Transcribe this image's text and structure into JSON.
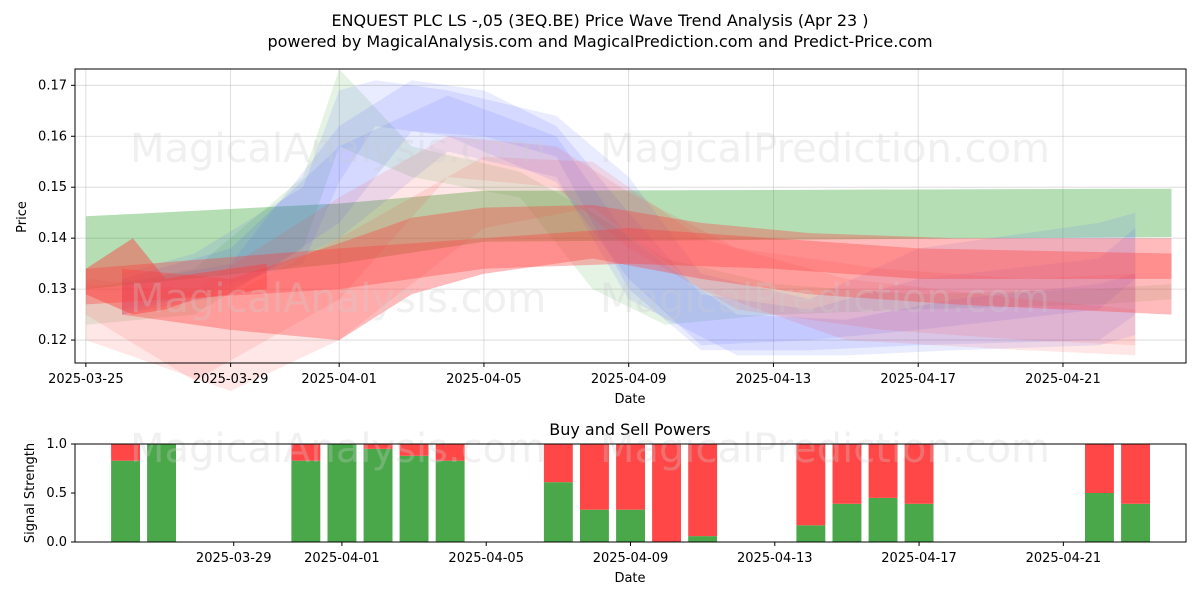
{
  "figure": {
    "title_line1": "ENQUEST PLC LS -,05 (3EQ.BE) Price Wave Trend Analysis (Apr 23 )",
    "title_line2": "powered by MagicalAnalysis.com and MagicalPrediction.com and Predict-Price.com",
    "watermarks": [
      "MagicalAnalysis.com",
      "MagicalPrediction.com"
    ]
  },
  "chart_data": [
    {
      "type": "area",
      "xlabel": "Date",
      "ylabel": "Price",
      "xlim": [
        "2025-03-24.7",
        "2025-04-24.4"
      ],
      "ylim": [
        0.1155,
        0.1732
      ],
      "x_ticks": [
        "2025-03-25",
        "2025-03-29",
        "2025-04-01",
        "2025-04-05",
        "2025-04-09",
        "2025-04-13",
        "2025-04-17",
        "2025-04-21"
      ],
      "y_ticks": [
        "0.12",
        "0.13",
        "0.14",
        "0.15",
        "0.16",
        "0.17"
      ],
      "grid": true,
      "colors": {
        "green": "#2ca02c",
        "blue": "#4a5cff",
        "red": "#ff3b3b"
      },
      "bands": [
        {
          "color": "green",
          "opacity": 0.35,
          "x": [
            "2025-03-25",
            "2025-04-01",
            "2025-04-05",
            "2025-04-24"
          ],
          "upper": [
            0.1443,
            0.1468,
            0.1493,
            0.1497
          ],
          "lower": [
            0.13,
            0.135,
            0.1393,
            0.1402
          ]
        },
        {
          "color": "green",
          "opacity": 0.12,
          "x": [
            "2025-03-25",
            "2025-03-28",
            "2025-03-31",
            "2025-04-01",
            "2025-04-03",
            "2025-04-06",
            "2025-04-08",
            "2025-04-10",
            "2025-04-13",
            "2025-04-17",
            "2025-04-22",
            "2025-04-24"
          ],
          "upper": [
            0.13,
            0.134,
            0.152,
            0.1732,
            0.158,
            0.153,
            0.145,
            0.136,
            0.131,
            0.129,
            0.13,
            0.131
          ],
          "lower": [
            0.123,
            0.125,
            0.138,
            0.158,
            0.152,
            0.148,
            0.13,
            0.123,
            0.125,
            0.126,
            0.127,
            0.128
          ]
        },
        {
          "color": "blue",
          "opacity": 0.12,
          "x": [
            "2025-03-26",
            "2025-03-28",
            "2025-03-31",
            "2025-04-01",
            "2025-04-02",
            "2025-04-04",
            "2025-04-07",
            "2025-04-09",
            "2025-04-11",
            "2025-04-14",
            "2025-04-17",
            "2025-04-22",
            "2025-04-23"
          ],
          "upper": [
            0.133,
            0.137,
            0.15,
            0.169,
            0.171,
            0.169,
            0.164,
            0.152,
            0.133,
            0.128,
            0.138,
            0.143,
            0.145
          ],
          "lower": [
            0.125,
            0.129,
            0.135,
            0.151,
            0.162,
            0.16,
            0.151,
            0.132,
            0.119,
            0.12,
            0.122,
            0.126,
            0.132
          ]
        },
        {
          "color": "blue",
          "opacity": 0.12,
          "x": [
            "2025-03-26",
            "2025-03-29",
            "2025-04-01",
            "2025-04-03",
            "2025-04-05",
            "2025-04-07",
            "2025-04-09",
            "2025-04-11",
            "2025-04-14",
            "2025-04-17",
            "2025-04-22",
            "2025-04-23"
          ],
          "upper": [
            0.131,
            0.135,
            0.162,
            0.171,
            0.169,
            0.162,
            0.145,
            0.129,
            0.126,
            0.132,
            0.136,
            0.142
          ],
          "lower": [
            0.125,
            0.129,
            0.143,
            0.161,
            0.16,
            0.156,
            0.13,
            0.118,
            0.118,
            0.119,
            0.12,
            0.125
          ]
        },
        {
          "color": "blue",
          "opacity": 0.12,
          "x": [
            "2025-03-26",
            "2025-03-29",
            "2025-04-01",
            "2025-04-04",
            "2025-04-07",
            "2025-04-09",
            "2025-04-12",
            "2025-04-15",
            "2025-04-18",
            "2025-04-22",
            "2025-04-23"
          ],
          "upper": [
            0.132,
            0.138,
            0.158,
            0.168,
            0.16,
            0.14,
            0.125,
            0.124,
            0.128,
            0.131,
            0.133
          ],
          "lower": [
            0.126,
            0.13,
            0.14,
            0.157,
            0.152,
            0.128,
            0.117,
            0.117,
            0.118,
            0.119,
            0.121
          ]
        },
        {
          "color": "red",
          "opacity": 0.12,
          "x": [
            "2025-03-25",
            "2025-03-28",
            "2025-04-01",
            "2025-04-04",
            "2025-04-07",
            "2025-04-09",
            "2025-04-12",
            "2025-04-16",
            "2025-04-20",
            "2025-04-23"
          ],
          "upper": [
            0.132,
            0.13,
            0.148,
            0.16,
            0.158,
            0.149,
            0.138,
            0.134,
            0.132,
            0.133
          ],
          "lower": [
            0.125,
            0.112,
            0.128,
            0.152,
            0.15,
            0.138,
            0.126,
            0.122,
            0.12,
            0.119
          ]
        },
        {
          "color": "red",
          "opacity": 0.12,
          "x": [
            "2025-03-25",
            "2025-03-29",
            "2025-04-01",
            "2025-04-05",
            "2025-04-08",
            "2025-04-11",
            "2025-04-15",
            "2025-04-20",
            "2025-04-23"
          ],
          "upper": [
            0.131,
            0.129,
            0.14,
            0.156,
            0.155,
            0.14,
            0.132,
            0.128,
            0.126
          ],
          "lower": [
            0.12,
            0.11,
            0.12,
            0.142,
            0.146,
            0.13,
            0.12,
            0.118,
            0.117
          ]
        },
        {
          "color": "red",
          "opacity": 0.35,
          "x": [
            "2025-03-26",
            "2025-03-29",
            "2025-04-01",
            "2025-04-03",
            "2025-04-05",
            "2025-04-08",
            "2025-04-11",
            "2025-04-14",
            "2025-04-18",
            "2025-04-24"
          ],
          "upper": [
            0.134,
            0.132,
            0.139,
            0.144,
            0.146,
            0.1465,
            0.143,
            0.141,
            0.14,
            0.14
          ],
          "lower": [
            0.125,
            0.122,
            0.12,
            0.129,
            0.133,
            0.136,
            0.132,
            0.129,
            0.127,
            0.125
          ]
        },
        {
          "color": "red",
          "opacity": 0.35,
          "x": [
            "2025-03-25",
            "2025-04-01",
            "2025-04-05",
            "2025-04-09",
            "2025-04-13",
            "2025-04-17",
            "2025-04-24"
          ],
          "upper": [
            0.134,
            0.138,
            0.14,
            0.142,
            0.14,
            0.138,
            0.137
          ],
          "lower": [
            0.127,
            0.13,
            0.134,
            0.135,
            0.134,
            0.132,
            0.132
          ]
        },
        {
          "color": "red",
          "opacity": 0.45,
          "x": [
            "2025-03-25",
            "2025-03-26.3",
            "2025-03-27.2",
            "2025-03-28",
            "2025-03-30"
          ],
          "upper": [
            0.134,
            0.14,
            0.132,
            0.133,
            0.135
          ],
          "lower": [
            0.129,
            0.125,
            0.126,
            0.128,
            0.13
          ]
        }
      ]
    },
    {
      "type": "bar",
      "title": "Buy and Sell Powers",
      "xlabel": "Date",
      "ylabel": "Signal Strength",
      "ylim": [
        0,
        1.0
      ],
      "y_ticks": [
        "0.0",
        "0.5",
        "1.0"
      ],
      "x_ticks": [
        "2025-03-29",
        "2025-04-01",
        "2025-04-05",
        "2025-04-09",
        "2025-04-13",
        "2025-04-17",
        "2025-04-21"
      ],
      "colors": {
        "buy": "#4aa84a",
        "sell": "#ff4747"
      },
      "dates": [
        "2025-03-26",
        "2025-03-27",
        "2025-03-31",
        "2025-04-01",
        "2025-04-02",
        "2025-04-03",
        "2025-04-04",
        "2025-04-07",
        "2025-04-08",
        "2025-04-09",
        "2025-04-10",
        "2025-04-11",
        "2025-04-14",
        "2025-04-15",
        "2025-04-16",
        "2025-04-17",
        "2025-04-22",
        "2025-04-23"
      ],
      "buy": [
        0.83,
        1.0,
        0.83,
        1.0,
        0.95,
        0.88,
        0.83,
        0.61,
        0.33,
        0.33,
        0.0,
        0.06,
        0.17,
        0.39,
        0.45,
        0.39,
        0.5,
        0.39
      ],
      "sell": [
        0.17,
        0.0,
        0.17,
        0.0,
        0.05,
        0.12,
        0.17,
        0.39,
        0.67,
        0.67,
        1.0,
        0.94,
        0.83,
        0.61,
        0.55,
        0.61,
        0.5,
        0.61
      ]
    }
  ]
}
